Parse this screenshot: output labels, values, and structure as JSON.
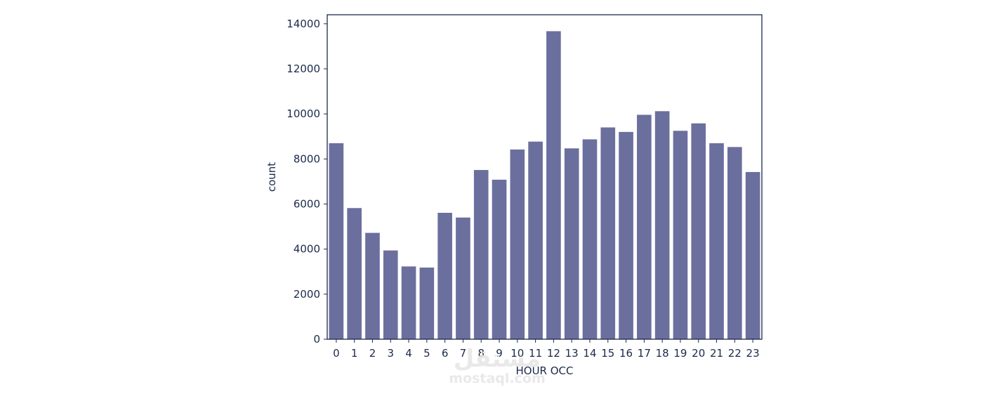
{
  "chart_data": {
    "type": "bar",
    "categories": [
      "0",
      "1",
      "2",
      "3",
      "4",
      "5",
      "6",
      "7",
      "8",
      "9",
      "10",
      "11",
      "12",
      "13",
      "14",
      "15",
      "16",
      "17",
      "18",
      "19",
      "20",
      "21",
      "22",
      "23"
    ],
    "values": [
      8700,
      5820,
      4720,
      3940,
      3230,
      3180,
      5610,
      5400,
      7510,
      7080,
      8420,
      8770,
      13670,
      8470,
      8870,
      9400,
      9200,
      9960,
      10120,
      9250,
      9580,
      8700,
      8530,
      7420
    ],
    "xlabel": "HOUR OCC",
    "ylabel": "count",
    "ylim": [
      0,
      14400
    ],
    "yticks": [
      0,
      2000,
      4000,
      6000,
      8000,
      10000,
      12000,
      14000
    ],
    "grid": false,
    "bar_color": "#6b6f9e",
    "axis_color": "#1b2a4a"
  },
  "watermark": {
    "logo": "مستقل",
    "text": "mostaql.com"
  }
}
